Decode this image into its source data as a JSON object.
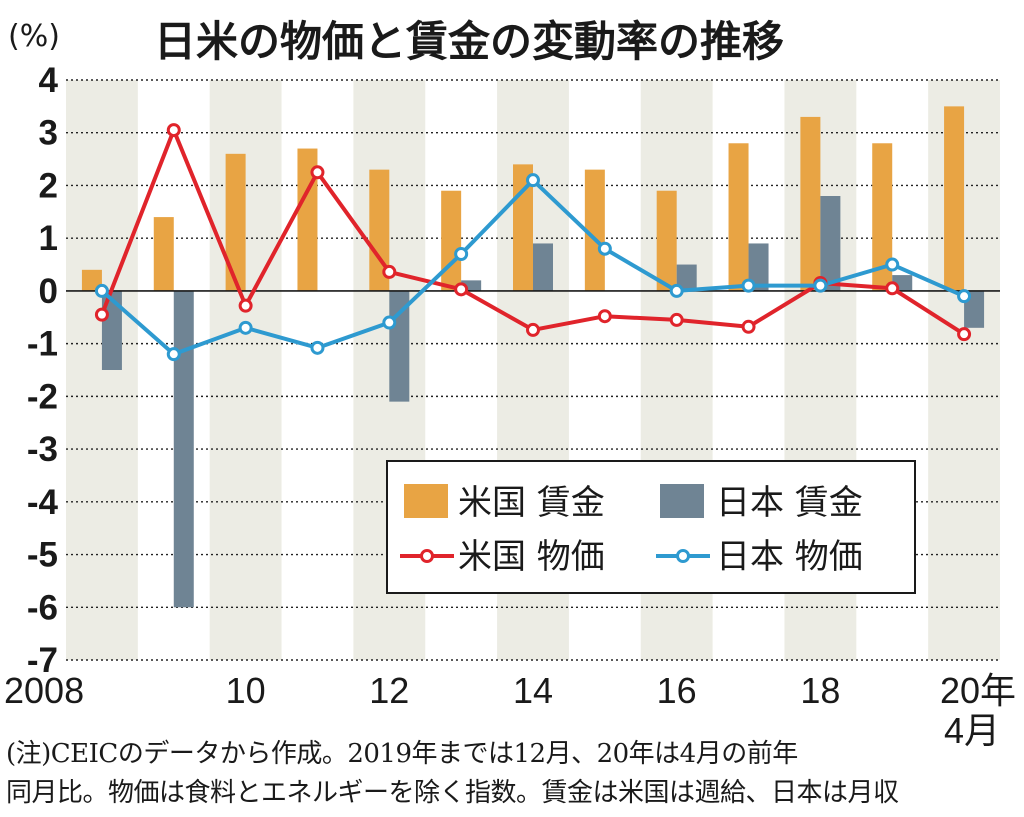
{
  "colors": {
    "us_wage": "#E8A444",
    "jp_wage": "#6F8494",
    "us_price": "#E0242B",
    "jp_price": "#2E9AD0",
    "band": "#ECECE4"
  },
  "note": {
    "line1": "(注)CEICのデータから作成。2019年までは12月、20年は4月の前年",
    "line2": "同月比。物価は食料とエネルギーを除く指数。賃金は米国は週給、日本は月収"
  },
  "chart_data": {
    "type": "bar+line",
    "title": "日米の物価と賃金の変動率の推移",
    "unit_label": "(%)",
    "ylim": [
      -7,
      4
    ],
    "yticks": [
      "4",
      "3",
      "2",
      "1",
      "0",
      "-1",
      "-2",
      "-3",
      "-4",
      "-5",
      "-6",
      "-7"
    ],
    "x": [
      "2008",
      "2009",
      "2010",
      "2011",
      "2012",
      "2013",
      "2014",
      "2015",
      "2016",
      "2017",
      "2018",
      "2019",
      "2020"
    ],
    "xtick_labels": [
      "2008",
      "",
      "10",
      "",
      "12",
      "",
      "14",
      "",
      "16",
      "",
      "18",
      "",
      "20年"
    ],
    "xtick_sub": "4月",
    "bars": [
      {
        "name": "米国 賃金",
        "values": [
          0.4,
          1.4,
          2.6,
          2.7,
          2.3,
          1.9,
          2.4,
          2.3,
          1.9,
          2.8,
          3.3,
          2.8,
          3.5
        ]
      },
      {
        "name": "日本 賃金",
        "values": [
          -1.5,
          -6.0,
          0.0,
          0.0,
          -2.1,
          0.2,
          0.9,
          0.0,
          0.5,
          0.9,
          1.8,
          0.3,
          -0.7
        ]
      }
    ],
    "lines": [
      {
        "name": "米国 物価",
        "values": [
          -0.45,
          3.05,
          -0.28,
          2.25,
          0.36,
          0.03,
          -0.74,
          -0.48,
          -0.55,
          -0.68,
          0.15,
          0.05,
          -0.82
        ]
      },
      {
        "name": "日本 物価",
        "values": [
          0.0,
          -1.2,
          -0.7,
          -1.08,
          -0.6,
          0.7,
          2.1,
          0.8,
          0.0,
          0.1,
          0.1,
          0.5,
          -0.1
        ]
      }
    ],
    "legend": {
      "position": "lower-right",
      "us_wage": "米国 賃金",
      "jp_wage": "日本 賃金",
      "us_price": "米国 物価",
      "jp_price": "日本 物価"
    }
  }
}
